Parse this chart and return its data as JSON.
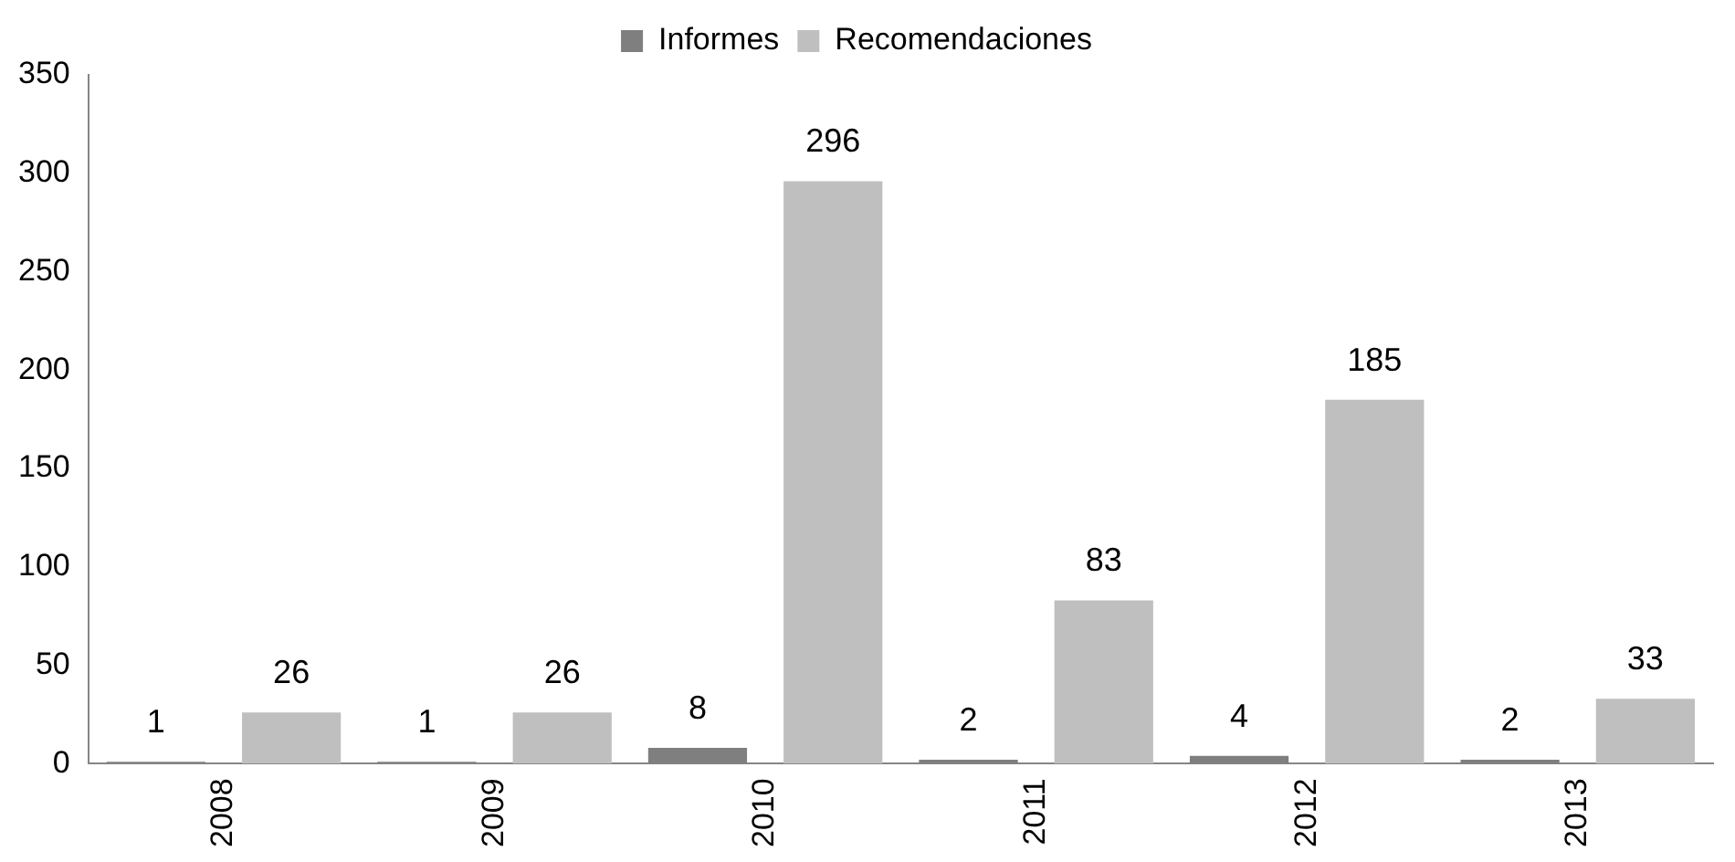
{
  "chart_data": {
    "type": "bar",
    "categories": [
      "2008",
      "2009",
      "2010",
      "2011",
      "2012",
      "2013"
    ],
    "series": [
      {
        "name": "Informes",
        "color": "#7f7f7f",
        "values": [
          1,
          1,
          8,
          2,
          4,
          2
        ]
      },
      {
        "name": "Recomendaciones",
        "color": "#bfbfbf",
        "values": [
          26,
          26,
          296,
          83,
          185,
          33
        ]
      }
    ],
    "ylim": [
      0,
      350
    ],
    "yticks": [
      0,
      50,
      100,
      150,
      200,
      250,
      300,
      350
    ],
    "grid": false,
    "legend": "top",
    "data_labels": true
  }
}
